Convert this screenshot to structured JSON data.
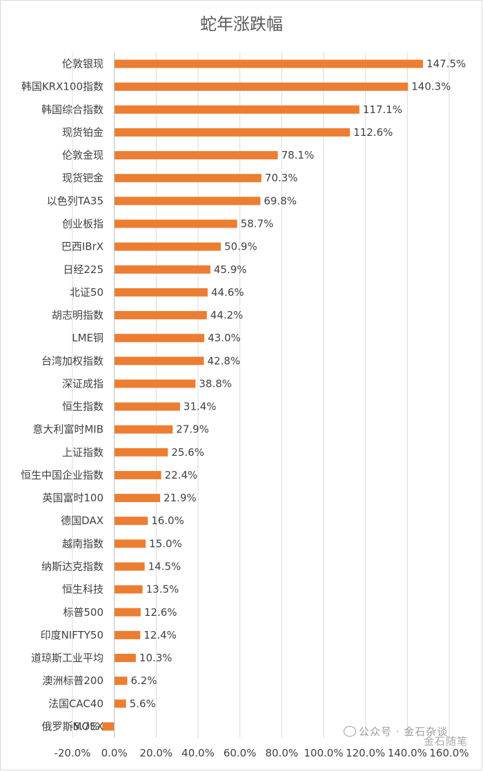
{
  "chart_data": {
    "type": "bar",
    "orientation": "horizontal",
    "title": "蛇年涨跌幅",
    "categories": [
      "伦敦银现",
      "韩国KRX100指数",
      "韩国综合指数",
      "现货铂金",
      "伦敦金现",
      "现货钯金",
      "以色列TA35",
      "创业板指",
      "巴西IBrX",
      "日经225",
      "北证50",
      "胡志明指数",
      "LME铜",
      "台湾加权指数",
      "深证成指",
      "恒生指数",
      "意大利富时MIB",
      "上证指数",
      "恒生中国企业指数",
      "英国富时100",
      "德国DAX",
      "越南指数",
      "纳斯达克指数",
      "恒生科技",
      "标普500",
      "印度NIFTY50",
      "道琼斯工业平均",
      "澳洲标普200",
      "法国CAC40",
      "俄罗斯MOEX"
    ],
    "values": [
      147.5,
      140.3,
      117.1,
      112.6,
      78.1,
      70.3,
      69.8,
      58.7,
      50.9,
      45.9,
      44.6,
      44.2,
      43.0,
      42.8,
      38.8,
      31.4,
      27.9,
      25.6,
      22.4,
      21.9,
      16.0,
      15.0,
      14.5,
      13.5,
      12.6,
      12.4,
      10.3,
      6.2,
      5.6,
      -5.7
    ],
    "data_labels": [
      "147.5%",
      "140.3%",
      "117.1%",
      "112.6%",
      "78.1%",
      "70.3%",
      "69.8%",
      "58.7%",
      "50.9%",
      "45.9%",
      "44.6%",
      "44.2%",
      "43.0%",
      "42.8%",
      "38.8%",
      "31.4%",
      "27.9%",
      "25.6%",
      "22.4%",
      "21.9%",
      "16.0%",
      "15.0%",
      "14.5%",
      "13.5%",
      "12.6%",
      "12.4%",
      "10.3%",
      "6.2%",
      "5.6%",
      "-5.7%"
    ],
    "x_ticks": [
      -20,
      0,
      20,
      40,
      60,
      80,
      100,
      120,
      140,
      160
    ],
    "x_tick_labels": [
      "-20.0%",
      "0.0%",
      "20.0%",
      "40.0%",
      "60.0%",
      "80.0%",
      "100.0%",
      "120.0%",
      "140.0%",
      "160.0%"
    ],
    "xlim": [
      -20,
      160
    ],
    "xlabel": "",
    "ylabel": "",
    "grid": "vertical",
    "legend": "none",
    "bar_color": "#ED7D31"
  },
  "watermark": {
    "line1": "公众号 · 金石杂谈",
    "line2": "金石随笔"
  },
  "colors": {
    "bar": "#ED7D31",
    "grid": "#d9d9d9",
    "text": "#404040",
    "title": "#595959"
  }
}
